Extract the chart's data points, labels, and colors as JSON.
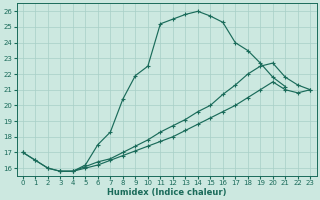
{
  "xlabel": "Humidex (Indice chaleur)",
  "xlim": [
    -0.5,
    23.5
  ],
  "ylim": [
    15.5,
    26.5
  ],
  "xticks": [
    0,
    1,
    2,
    3,
    4,
    5,
    6,
    7,
    8,
    9,
    10,
    11,
    12,
    13,
    14,
    15,
    16,
    17,
    18,
    19,
    20,
    21,
    22,
    23
  ],
  "yticks": [
    16,
    17,
    18,
    19,
    20,
    21,
    22,
    23,
    24,
    25,
    26
  ],
  "background_color": "#cce8e0",
  "grid_color": "#a8cfc7",
  "line_color": "#1a6b5a",
  "line1_x": [
    0,
    1,
    2,
    3,
    4,
    5,
    6,
    7,
    8,
    9,
    10,
    11,
    12,
    13,
    14,
    15,
    16,
    17,
    18,
    19,
    20,
    21
  ],
  "line1_y": [
    17.0,
    16.5,
    16.0,
    15.8,
    15.8,
    16.2,
    17.5,
    18.3,
    20.4,
    21.9,
    22.5,
    25.2,
    25.5,
    25.8,
    26.0,
    25.7,
    25.3,
    24.0,
    23.5,
    22.7,
    21.8,
    21.2
  ],
  "line2_x": [
    0,
    1,
    2,
    3,
    4,
    5,
    6,
    7,
    8,
    9,
    10,
    11,
    12,
    13,
    14,
    15,
    16,
    17,
    18,
    19,
    20,
    21,
    22,
    23
  ],
  "line2_y": [
    17.0,
    16.5,
    16.0,
    15.8,
    15.8,
    16.1,
    16.4,
    16.6,
    17.0,
    17.4,
    17.8,
    18.3,
    18.7,
    19.1,
    19.6,
    20.0,
    20.7,
    21.3,
    22.0,
    22.5,
    22.7,
    21.8,
    21.3,
    21.0
  ],
  "line3_x": [
    3,
    4,
    5,
    6,
    7,
    8,
    9,
    10,
    11,
    12,
    13,
    14,
    15,
    16,
    17,
    18,
    19,
    20,
    21,
    22,
    23
  ],
  "line3_y": [
    15.8,
    15.8,
    16.0,
    16.2,
    16.5,
    16.8,
    17.1,
    17.4,
    17.7,
    18.0,
    18.4,
    18.8,
    19.2,
    19.6,
    20.0,
    20.5,
    21.0,
    21.5,
    21.0,
    20.8,
    21.0
  ]
}
